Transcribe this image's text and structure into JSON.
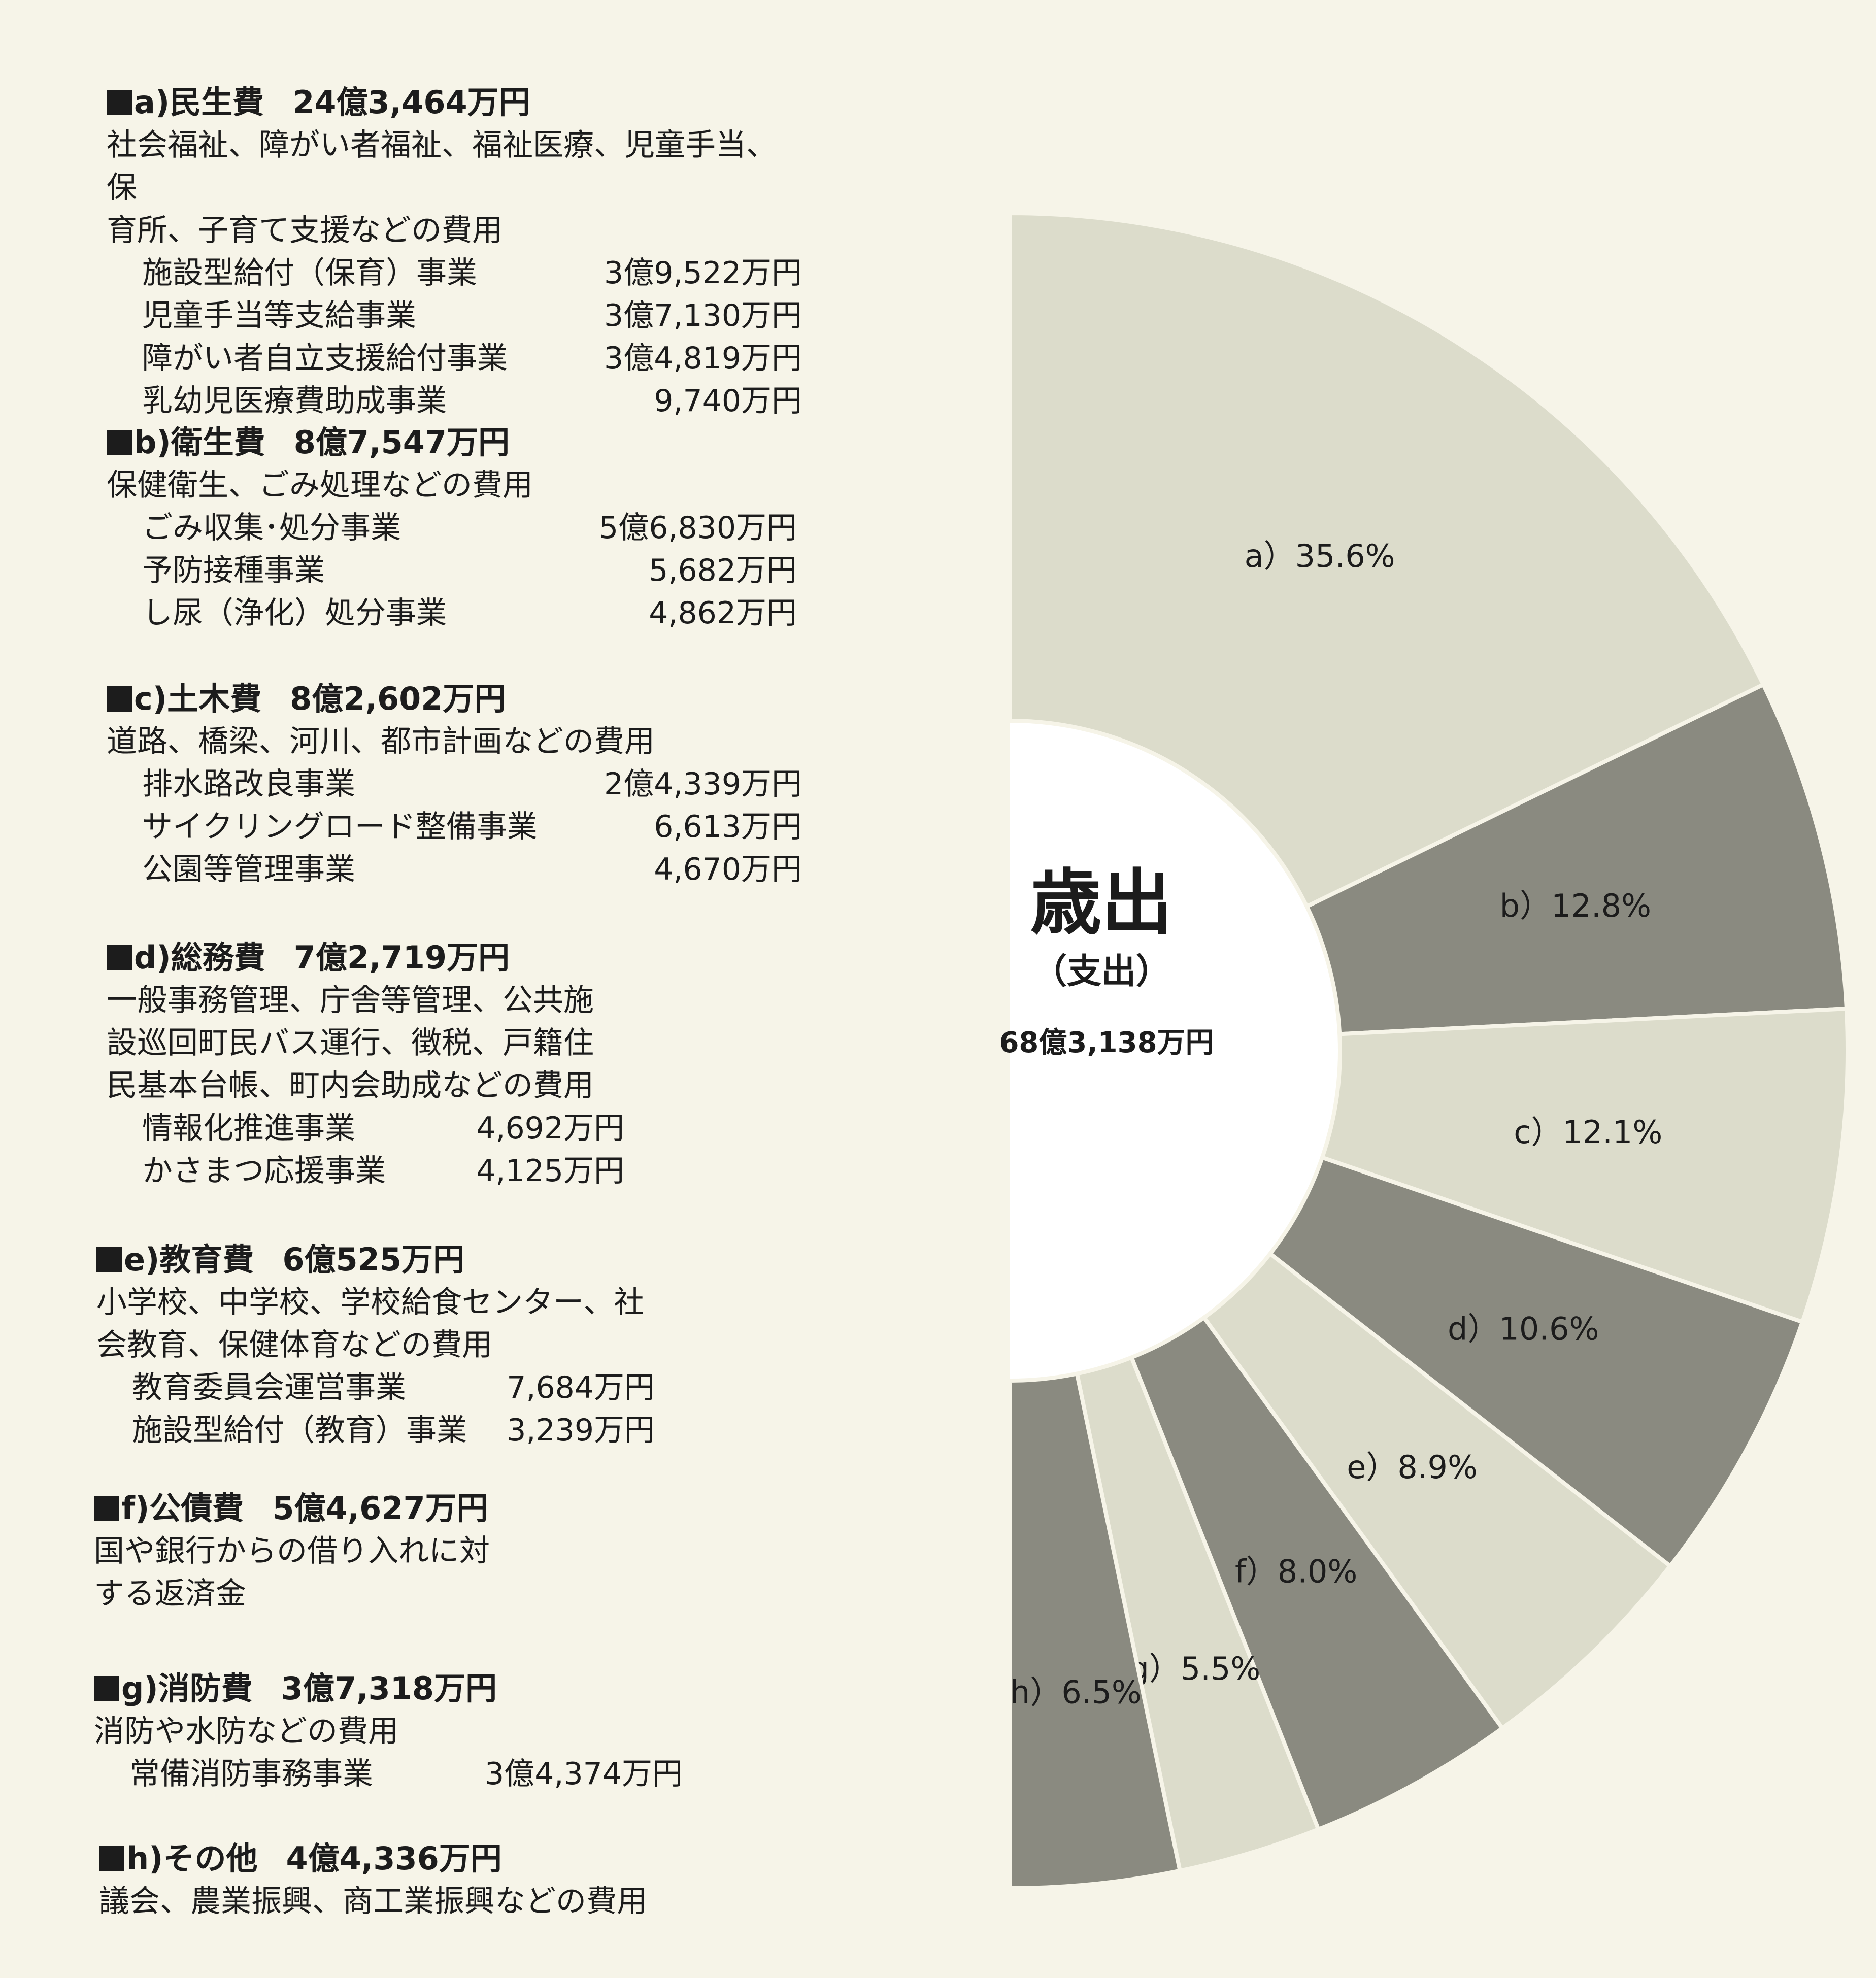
{
  "sections": [
    {
      "marker": "a)",
      "name": "民生費",
      "amount": "24億3,464万円",
      "desc": [
        "社会福祉、障がい者福祉、福祉医療、児童手当、保",
        "育所、子育て支援などの費用"
      ],
      "items": [
        {
          "name": "施設型給付（保育）事業",
          "amount": "3億9,522万円"
        },
        {
          "name": "児童手当等支給事業",
          "amount": "3億7,130万円"
        },
        {
          "name": "障がい者自立支援給付事業",
          "amount": "3億4,819万円"
        },
        {
          "name": "乳幼児医療費助成事業",
          "amount": "9,740万円"
        }
      ]
    },
    {
      "marker": "b)",
      "name": "衛生費",
      "amount": "8億7,547万円",
      "desc": [
        "保健衛生、ごみ処理などの費用"
      ],
      "items": [
        {
          "name": "ごみ収集･処分事業",
          "amount": "5億6,830万円"
        },
        {
          "name": "予防接種事業",
          "amount": "5,682万円"
        },
        {
          "name": "し尿（浄化）処分事業",
          "amount": "4,862万円"
        }
      ]
    },
    {
      "marker": "c)",
      "name": "土木費",
      "amount": "8億2,602万円",
      "desc": [
        "道路、橋梁、河川、都市計画などの費用"
      ],
      "items": [
        {
          "name": "排水路改良事業",
          "amount": "2億4,339万円"
        },
        {
          "name": "サイクリングロード整備事業",
          "amount": "6,613万円"
        },
        {
          "name": "公園等管理事業",
          "amount": "4,670万円"
        }
      ]
    },
    {
      "marker": "d)",
      "name": "総務費",
      "amount": "7億2,719万円",
      "desc": [
        "一般事務管理、庁舎等管理、公共施",
        "設巡回町民バス運行、徴税、戸籍住",
        "民基本台帳、町内会助成などの費用"
      ],
      "items": [
        {
          "name": "情報化推進事業",
          "amount": "4,692万円"
        },
        {
          "name": "かさまつ応援事業",
          "amount": "4,125万円"
        }
      ]
    },
    {
      "marker": "e)",
      "name": "教育費",
      "amount": "6億525万円",
      "desc": [
        "小学校、中学校、学校給食センター、社",
        "会教育、保健体育などの費用"
      ],
      "items": [
        {
          "name": "教育委員会運営事業",
          "amount": "7,684万円"
        },
        {
          "name": "施設型給付（教育）事業",
          "amount": "3,239万円"
        }
      ]
    },
    {
      "marker": "f)",
      "name": "公債費",
      "amount": "5億4,627万円",
      "desc": [
        "国や銀行からの借り入れに対",
        "する返済金"
      ],
      "items": []
    },
    {
      "marker": "g)",
      "name": "消防費",
      "amount": "3億7,318万円",
      "desc": [
        "消防や水防などの費用"
      ],
      "items": [
        {
          "name": "常備消防事務事業",
          "amount": "3億4,374万円"
        }
      ]
    },
    {
      "marker": "h)",
      "name": "その他",
      "amount": "4億4,336万円",
      "desc": [
        "議会、農業振興、商工業振興などの費用"
      ],
      "items": []
    }
  ],
  "center": {
    "title": "歳出",
    "subtitle": "（支出）",
    "total": "68億3,138万円"
  },
  "colors": {
    "light": "#dcdccb",
    "dark": "#8a8a80",
    "gap": "#f6f4e8",
    "text": "#1c1c1c"
  },
  "chart_data": {
    "type": "pie",
    "style": "half-donut, right half, clockwise from top",
    "categories": [
      "a)",
      "b)",
      "c)",
      "d)",
      "e)",
      "f)",
      "g)",
      "h)"
    ],
    "values": [
      35.6,
      12.8,
      12.1,
      10.6,
      8.9,
      8.0,
      5.5,
      6.5
    ],
    "labels": [
      "a）35.6%",
      "b）12.8%",
      "c）12.1%",
      "d）10.6%",
      "e）8.9%",
      "f）8.0%",
      "g）5.5%",
      "h）6.5%"
    ],
    "shades": [
      "light",
      "dark",
      "light",
      "dark",
      "light",
      "dark",
      "light",
      "dark"
    ]
  }
}
